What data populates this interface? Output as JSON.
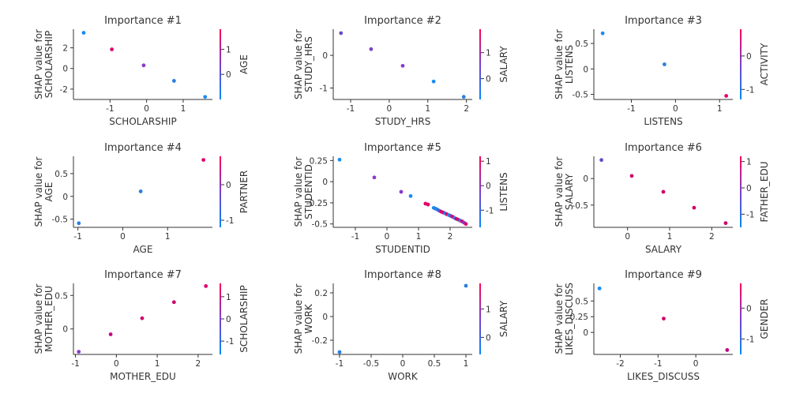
{
  "chart_data": [
    {
      "type": "scatter",
      "title": "Importance #1",
      "xlabel": "SCHOLARSHIP",
      "ylabel": [
        "SHAP value for",
        "SCHOLARSHIP"
      ],
      "colorbar_label": "AGE",
      "xlim": [
        -2.0,
        1.8
      ],
      "ylim": [
        -3.0,
        3.8
      ],
      "xticks": [
        -1,
        0,
        1
      ],
      "yticks": [
        -2,
        0,
        2
      ],
      "cbticks": [
        0,
        1
      ],
      "cblim": [
        -1,
        1.8
      ],
      "points": [
        {
          "x": -1.72,
          "y": 3.45,
          "c": "#1a8cf0"
        },
        {
          "x": -0.95,
          "y": 1.85,
          "c": "#e0006e"
        },
        {
          "x": -0.08,
          "y": 0.3,
          "c": "#8a3bc8"
        },
        {
          "x": 0.75,
          "y": -1.2,
          "c": "#2a7fe0"
        },
        {
          "x": 1.6,
          "y": -2.75,
          "c": "#1a8cf0"
        }
      ]
    },
    {
      "type": "scatter",
      "title": "Importance #2",
      "xlabel": "STUDY_HRS",
      "ylabel": [
        "SHAP value for",
        "STUDY_HRS"
      ],
      "colorbar_label": "SALARY",
      "xlim": [
        -1.45,
        2.15
      ],
      "ylim": [
        -1.35,
        0.8
      ],
      "xticks": [
        -1,
        0,
        1,
        2
      ],
      "yticks": [
        -1,
        0
      ],
      "cbticks": [
        0,
        1
      ],
      "cblim": [
        -0.8,
        1.9
      ],
      "points": [
        {
          "x": -1.25,
          "y": 0.68,
          "c": "#6a4ad0"
        },
        {
          "x": -0.47,
          "y": 0.19,
          "c": "#7a44c8"
        },
        {
          "x": 0.35,
          "y": -0.32,
          "c": "#8a3bc8"
        },
        {
          "x": 1.15,
          "y": -0.8,
          "c": "#1a8cf0"
        },
        {
          "x": 1.93,
          "y": -1.27,
          "c": "#2a7fe0"
        }
      ]
    },
    {
      "type": "scatter",
      "title": "Importance #3",
      "xlabel": "LISTENS",
      "ylabel": [
        "SHAP value for",
        "LISTENS"
      ],
      "colorbar_label": "ACTIVITY",
      "xlim": [
        -1.85,
        1.3
      ],
      "ylim": [
        -0.6,
        0.78
      ],
      "xticks": [
        -1,
        0,
        1
      ],
      "yticks": [
        -0.5,
        0.0,
        0.5
      ],
      "cbticks": [
        -1,
        0
      ],
      "cblim": [
        -1.3,
        0.8
      ],
      "points": [
        {
          "x": -1.65,
          "y": 0.7,
          "c": "#1a8cf0"
        },
        {
          "x": -0.25,
          "y": 0.09,
          "c": "#2a7fe0"
        },
        {
          "x": 1.15,
          "y": -0.53,
          "c": "#e0006e"
        }
      ]
    },
    {
      "type": "scatter",
      "title": "Importance #4",
      "xlabel": "AGE",
      "ylabel": [
        "SHAP value for",
        "AGE"
      ],
      "colorbar_label": "PARTNER",
      "xlim": [
        -1.1,
        2.0
      ],
      "ylim": [
        -0.68,
        0.88
      ],
      "xticks": [
        -1,
        0,
        1
      ],
      "yticks": [
        -0.5,
        0.0,
        0.5
      ],
      "cbticks": [
        -1,
        0
      ],
      "cblim": [
        -1.2,
        0.8
      ],
      "points": [
        {
          "x": -0.98,
          "y": -0.59,
          "c": "#2a7fe0"
        },
        {
          "x": 0.4,
          "y": 0.11,
          "c": "#2a7fe0"
        },
        {
          "x": 1.8,
          "y": 0.8,
          "c": "#e0006e"
        }
      ]
    },
    {
      "type": "scatter",
      "title": "Importance #5",
      "xlabel": "STUDENTID",
      "ylabel": [
        "SHAP value for",
        "STUDENTID"
      ],
      "colorbar_label": "LISTENS",
      "xlim": [
        -1.7,
        2.7
      ],
      "ylim": [
        -0.54,
        0.3
      ],
      "xticks": [
        -1,
        0,
        1,
        2
      ],
      "yticks": [
        -0.5,
        -0.25,
        0.0,
        0.25
      ],
      "cbticks": [
        -1,
        0,
        1
      ],
      "cblim": [
        -1.7,
        1.2
      ],
      "points": [
        {
          "x": -1.5,
          "y": 0.26,
          "c": "#1a8cf0"
        },
        {
          "x": -0.4,
          "y": 0.05,
          "c": "#8a3bc8"
        },
        {
          "x": 0.45,
          "y": -0.12,
          "c": "#8a3bc8"
        },
        {
          "x": 0.75,
          "y": -0.17,
          "c": "#1a8cf0"
        },
        {
          "x": 1.22,
          "y": -0.26,
          "c": "#e0006e"
        },
        {
          "x": 1.3,
          "y": -0.27,
          "c": "#e0006e"
        },
        {
          "x": 1.48,
          "y": -0.31,
          "c": "#1a8cf0"
        },
        {
          "x": 1.54,
          "y": -0.32,
          "c": "#2a7fe0"
        },
        {
          "x": 1.6,
          "y": -0.33,
          "c": "#2a7fe0"
        },
        {
          "x": 1.66,
          "y": -0.345,
          "c": "#5a55d8"
        },
        {
          "x": 1.72,
          "y": -0.355,
          "c": "#e0006e"
        },
        {
          "x": 1.78,
          "y": -0.365,
          "c": "#c00a80"
        },
        {
          "x": 1.84,
          "y": -0.375,
          "c": "#2a7fe0"
        },
        {
          "x": 1.9,
          "y": -0.385,
          "c": "#e0006e"
        },
        {
          "x": 1.96,
          "y": -0.395,
          "c": "#1a8cf0"
        },
        {
          "x": 2.02,
          "y": -0.405,
          "c": "#7a44c8"
        },
        {
          "x": 2.08,
          "y": -0.415,
          "c": "#e0006e"
        },
        {
          "x": 2.14,
          "y": -0.43,
          "c": "#2a7fe0"
        },
        {
          "x": 2.2,
          "y": -0.44,
          "c": "#c00a80"
        },
        {
          "x": 2.26,
          "y": -0.45,
          "c": "#e0006e"
        },
        {
          "x": 2.32,
          "y": -0.46,
          "c": "#2a7fe0"
        },
        {
          "x": 2.38,
          "y": -0.47,
          "c": "#e0006e"
        },
        {
          "x": 2.44,
          "y": -0.485,
          "c": "#7a44c8"
        },
        {
          "x": 2.5,
          "y": -0.5,
          "c": "#e0006e"
        }
      ]
    },
    {
      "type": "scatter",
      "title": "Importance #6",
      "xlabel": "SALARY",
      "ylabel": [
        "SHAP value for",
        "SALARY"
      ],
      "colorbar_label": "FATHER_EDU",
      "xlim": [
        -0.8,
        2.5
      ],
      "ylim": [
        -0.92,
        0.42
      ],
      "xticks": [
        0,
        1,
        2
      ],
      "yticks": [
        -0.5,
        0.0
      ],
      "cbticks": [
        -1,
        0,
        1
      ],
      "cblim": [
        -1.5,
        1.2
      ],
      "points": [
        {
          "x": -0.62,
          "y": 0.35,
          "c": "#6a4ad0"
        },
        {
          "x": 0.1,
          "y": 0.05,
          "c": "#d0006a"
        },
        {
          "x": 0.85,
          "y": -0.25,
          "c": "#d0006a"
        },
        {
          "x": 1.58,
          "y": -0.55,
          "c": "#d0006a"
        },
        {
          "x": 2.33,
          "y": -0.84,
          "c": "#d0006a"
        }
      ]
    },
    {
      "type": "scatter",
      "title": "Importance #7",
      "xlabel": "MOTHER_EDU",
      "ylabel": [
        "SHAP value for",
        "MOTHER_EDU"
      ],
      "colorbar_label": "SCHOLARSHIP",
      "xlim": [
        -1.05,
        2.35
      ],
      "ylim": [
        -0.38,
        0.68
      ],
      "xticks": [
        -1,
        0,
        1,
        2
      ],
      "yticks": [
        0.0,
        0.5
      ],
      "cbticks": [
        -1,
        0,
        1
      ],
      "cblim": [
        -1.6,
        1.6
      ],
      "points": [
        {
          "x": -0.92,
          "y": -0.34,
          "c": "#8a3bc8"
        },
        {
          "x": -0.14,
          "y": -0.08,
          "c": "#c00a80"
        },
        {
          "x": 0.63,
          "y": 0.16,
          "c": "#d0006a"
        },
        {
          "x": 1.41,
          "y": 0.4,
          "c": "#d0006a"
        },
        {
          "x": 2.19,
          "y": 0.64,
          "c": "#e0006e"
        }
      ]
    },
    {
      "type": "scatter",
      "title": "Importance #8",
      "xlabel": "WORK",
      "ylabel": [
        "SHAP value for",
        "WORK"
      ],
      "colorbar_label": "SALARY",
      "xlim": [
        -1.1,
        1.1
      ],
      "ylim": [
        -0.32,
        0.28
      ],
      "xticks": [
        -1.0,
        -0.5,
        0.0,
        0.5,
        1.0
      ],
      "yticks": [
        -0.2,
        0.0,
        0.2
      ],
      "cbticks": [
        0,
        1
      ],
      "cblim": [
        -0.6,
        1.9
      ],
      "points": [
        {
          "x": -1.0,
          "y": -0.3,
          "c": "#2a7fe0"
        },
        {
          "x": 1.0,
          "y": 0.26,
          "c": "#2a7fe0"
        }
      ]
    },
    {
      "type": "scatter",
      "title": "Importance #9",
      "xlabel": "LIKES_DISCUSS",
      "ylabel": [
        "SHAP value for",
        "LIKES_DISCUSS"
      ],
      "colorbar_label": "GENDER",
      "xlim": [
        -2.7,
        0.98
      ],
      "ylim": [
        -0.35,
        0.78
      ],
      "xticks": [
        -2,
        -1,
        0
      ],
      "yticks": [
        0.0,
        0.25,
        0.5
      ],
      "cbticks": [
        -1,
        0
      ],
      "cblim": [
        -1.5,
        0.8
      ],
      "points": [
        {
          "x": -2.55,
          "y": 0.7,
          "c": "#1a8cf0"
        },
        {
          "x": -0.85,
          "y": 0.22,
          "c": "#d0006a"
        },
        {
          "x": 0.83,
          "y": -0.28,
          "c": "#c00a80"
        }
      ]
    }
  ]
}
